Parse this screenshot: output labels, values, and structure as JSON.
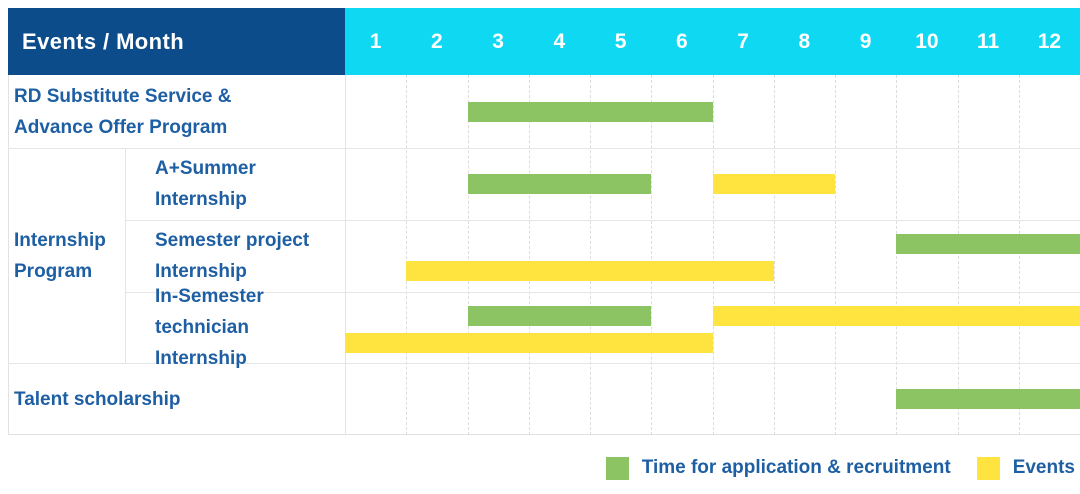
{
  "header": {
    "title": "Events / Month"
  },
  "colors": {
    "header_bg": "#0d4c8b",
    "months_bg": "#0ed8f2",
    "application": "#8cc463",
    "event": "#ffe440",
    "label_text": "#1e5fa4",
    "grid_line": "#dcdcdc"
  },
  "chart_data": {
    "type": "gantt",
    "title": "Events / Month",
    "x_unit": "month",
    "x_range": [
      1,
      12
    ],
    "months": [
      "1",
      "2",
      "3",
      "4",
      "5",
      "6",
      "7",
      "8",
      "9",
      "10",
      "11",
      "12"
    ],
    "group": {
      "label": "Internship Program",
      "label_lines": [
        "Internship",
        "Program"
      ],
      "member_row_indexes": [
        1,
        2,
        3
      ]
    },
    "rows": [
      {
        "label": "RD Substitute Service & Advance Offer Program",
        "label_lines": [
          "RD Substitute Service &",
          "Advance Offer Program"
        ],
        "group": "",
        "bars": [
          {
            "kind": "application",
            "start_month": 3,
            "end_month": 6,
            "lane": "mid"
          }
        ]
      },
      {
        "label": "A+Summer Internship",
        "label_lines": [
          "A+Summer",
          "Internship"
        ],
        "group": "Internship Program",
        "bars": [
          {
            "kind": "application",
            "start_month": 3,
            "end_month": 5,
            "lane": "mid"
          },
          {
            "kind": "event",
            "start_month": 7,
            "end_month": 8,
            "lane": "mid"
          }
        ]
      },
      {
        "label": "Semester project Internship",
        "label_lines": [
          "Semester project",
          "Internship"
        ],
        "group": "Internship Program",
        "bars": [
          {
            "kind": "application",
            "start_month": 10,
            "end_month": 12,
            "lane": "top"
          },
          {
            "kind": "event",
            "start_month": 2,
            "end_month": 7,
            "lane": "bottom"
          }
        ]
      },
      {
        "label": "In-Semester technician Internship",
        "label_lines": [
          "In-Semester",
          "technician Internship"
        ],
        "group": "Internship Program",
        "bars": [
          {
            "kind": "application",
            "start_month": 3,
            "end_month": 5,
            "lane": "top"
          },
          {
            "kind": "event",
            "start_month": 7,
            "end_month": 12,
            "lane": "top"
          },
          {
            "kind": "event",
            "start_month": 1,
            "end_month": 6,
            "lane": "bottom"
          }
        ]
      },
      {
        "label": "Talent scholarship",
        "label_lines": [
          "Talent scholarship",
          ""
        ],
        "group": "",
        "bars": [
          {
            "kind": "application",
            "start_month": 10,
            "end_month": 12,
            "lane": "mid"
          }
        ]
      }
    ],
    "legend": [
      {
        "kind": "application",
        "label": "Time for application & recruitment",
        "color": "#8cc463"
      },
      {
        "kind": "event",
        "label": "Events",
        "color": "#ffe440"
      }
    ]
  }
}
